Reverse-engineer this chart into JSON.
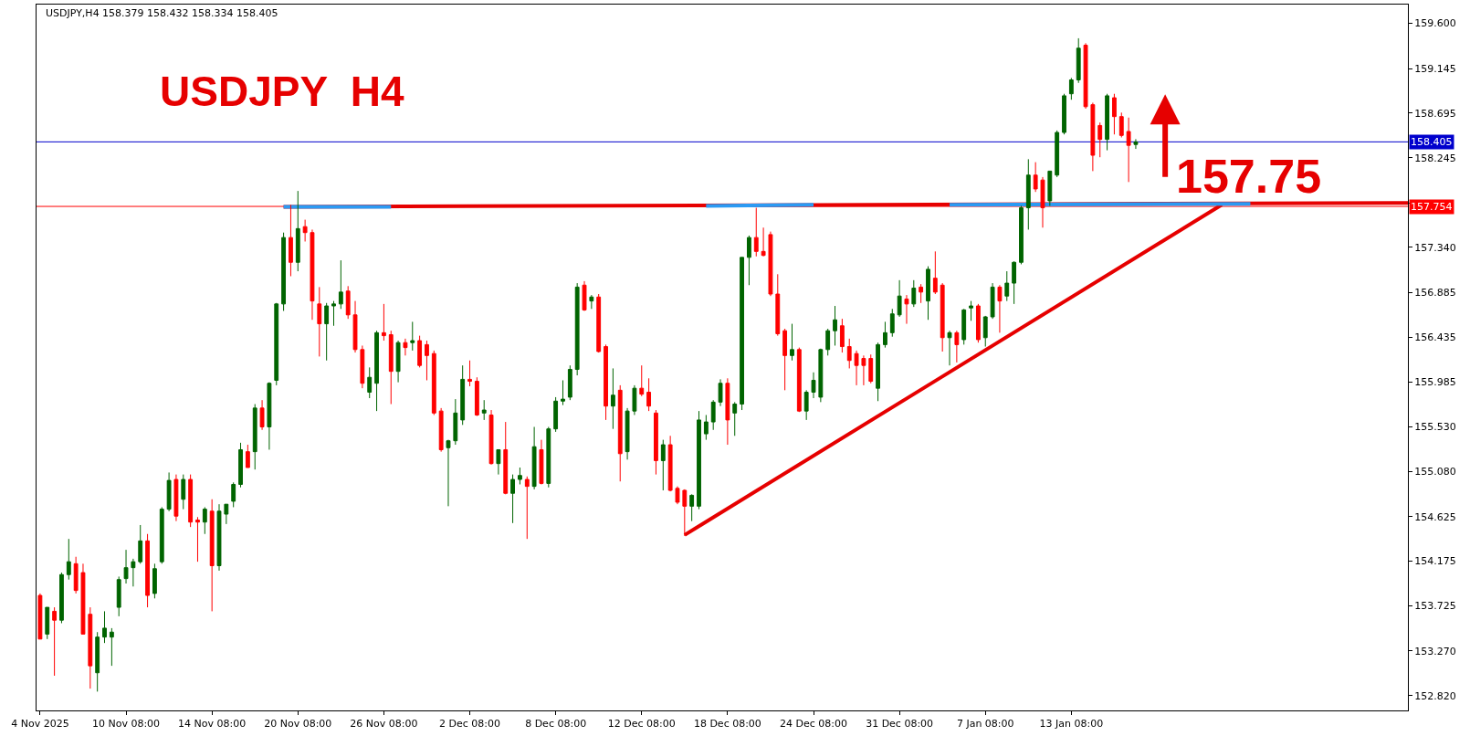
{
  "chart_data": {
    "type": "candlestick",
    "title": "USDJPY  H4",
    "subtitle": "USDJPY,H4 158.379 158.432 158.334 158.405",
    "annotations": [
      "157.75"
    ],
    "categories": [
      "4 Nov 2025",
      null,
      null,
      null,
      null,
      null,
      null,
      null,
      null,
      null,
      null,
      null,
      "10 Nov 08:00",
      null,
      null,
      null,
      null,
      null,
      null,
      null,
      null,
      null,
      null,
      null,
      "14 Nov 08:00",
      null,
      null,
      null,
      null,
      null,
      null,
      null,
      null,
      null,
      null,
      null,
      "20 Nov 08:00",
      null,
      null,
      null,
      null,
      null,
      null,
      null,
      null,
      null,
      null,
      null,
      "26 Nov 08:00",
      null,
      null,
      null,
      null,
      null,
      null,
      null,
      null,
      null,
      null,
      null,
      "2 Dec 08:00",
      null,
      null,
      null,
      null,
      null,
      null,
      null,
      null,
      null,
      null,
      null,
      "8 Dec 08:00",
      null,
      null,
      null,
      null,
      null,
      null,
      null,
      null,
      null,
      null,
      null,
      "12 Dec 08:00",
      null,
      null,
      null,
      null,
      null,
      null,
      null,
      null,
      null,
      null,
      null,
      "18 Dec 08:00",
      null,
      null,
      null,
      null,
      null,
      null,
      null,
      null,
      null,
      null,
      null,
      "24 Dec 08:00",
      null,
      null,
      null,
      null,
      null,
      null,
      null,
      null,
      null,
      null,
      null,
      "31 Dec 08:00",
      null,
      null,
      null,
      null,
      null,
      null,
      null,
      null,
      null,
      null,
      null,
      "7 Jan 08:00",
      null,
      null,
      null,
      null,
      null,
      null,
      null,
      null,
      null,
      null,
      null,
      "13 Jan 08:00",
      null,
      null,
      null,
      null,
      null,
      null,
      null,
      null,
      null,
      null,
      null,
      null,
      null,
      null,
      null,
      null,
      null,
      null,
      null,
      null,
      null,
      null,
      null,
      null,
      null,
      null,
      null,
      null,
      null,
      null,
      null,
      null,
      null,
      null,
      null,
      null,
      null,
      null,
      null,
      null,
      null,
      null,
      null,
      null,
      null,
      null,
      null
    ],
    "ohlc": [
      [
        153.83,
        153.85,
        153.39,
        153.39
      ],
      [
        153.44,
        153.71,
        153.39,
        153.71
      ],
      [
        153.67,
        153.71,
        153.02,
        153.58
      ],
      [
        153.58,
        154.06,
        153.55,
        154.04
      ],
      [
        154.04,
        154.4,
        153.99,
        154.17
      ],
      [
        154.15,
        154.22,
        153.85,
        153.88
      ],
      [
        154.06,
        154.15,
        153.44,
        153.44
      ],
      [
        153.64,
        153.71,
        152.89,
        153.12
      ],
      [
        153.05,
        153.46,
        152.86,
        153.41
      ],
      [
        153.41,
        153.67,
        153.35,
        153.5
      ],
      [
        153.41,
        153.5,
        153.12,
        153.46
      ],
      [
        153.71,
        154.02,
        153.62,
        153.99
      ],
      [
        154.0,
        154.29,
        153.95,
        154.11
      ],
      [
        154.11,
        154.2,
        153.92,
        154.17
      ],
      [
        154.17,
        154.54,
        154.15,
        154.38
      ],
      [
        154.38,
        154.45,
        153.71,
        153.83
      ],
      [
        153.85,
        154.15,
        153.8,
        154.1
      ],
      [
        154.17,
        154.72,
        154.15,
        154.7
      ],
      [
        154.7,
        155.07,
        154.68,
        154.99
      ],
      [
        155.0,
        155.05,
        154.58,
        154.63
      ],
      [
        154.8,
        155.05,
        154.7,
        155.0
      ],
      [
        155.0,
        155.05,
        154.52,
        154.57
      ],
      [
        154.59,
        154.62,
        154.17,
        154.57
      ],
      [
        154.57,
        154.72,
        154.45,
        154.7
      ],
      [
        154.68,
        154.8,
        153.67,
        154.13
      ],
      [
        154.13,
        154.75,
        154.08,
        154.68
      ],
      [
        154.65,
        154.75,
        154.55,
        154.75
      ],
      [
        154.78,
        154.97,
        154.72,
        154.95
      ],
      [
        154.95,
        155.37,
        154.92,
        155.3
      ],
      [
        155.28,
        155.35,
        155.12,
        155.12
      ],
      [
        155.28,
        155.76,
        155.1,
        155.72
      ],
      [
        155.72,
        155.8,
        155.5,
        155.53
      ],
      [
        155.53,
        155.98,
        155.3,
        155.97
      ],
      [
        156.0,
        156.78,
        155.95,
        156.77
      ],
      [
        156.77,
        157.49,
        156.7,
        157.44
      ],
      [
        157.44,
        157.77,
        157.05,
        157.19
      ],
      [
        157.19,
        157.91,
        157.1,
        157.53
      ],
      [
        157.55,
        157.62,
        157.4,
        157.49
      ],
      [
        157.49,
        157.52,
        156.61,
        156.8
      ],
      [
        156.77,
        156.94,
        156.24,
        156.57
      ],
      [
        156.57,
        156.78,
        156.2,
        156.75
      ],
      [
        156.75,
        156.8,
        156.55,
        156.77
      ],
      [
        156.77,
        157.21,
        156.72,
        156.89
      ],
      [
        156.9,
        156.95,
        156.62,
        156.66
      ],
      [
        156.66,
        156.8,
        156.28,
        156.31
      ],
      [
        156.31,
        156.35,
        155.92,
        155.97
      ],
      [
        155.88,
        156.13,
        155.82,
        156.03
      ],
      [
        155.97,
        156.5,
        155.69,
        156.48
      ],
      [
        156.48,
        156.77,
        156.4,
        156.45
      ],
      [
        156.46,
        156.5,
        155.76,
        156.09
      ],
      [
        156.09,
        156.4,
        155.98,
        156.38
      ],
      [
        156.38,
        156.42,
        156.25,
        156.33
      ],
      [
        156.38,
        156.59,
        156.3,
        156.4
      ],
      [
        156.4,
        156.45,
        156.13,
        156.15
      ],
      [
        156.36,
        156.4,
        156.0,
        156.25
      ],
      [
        156.27,
        156.3,
        155.65,
        155.67
      ],
      [
        155.69,
        155.72,
        155.28,
        155.3
      ],
      [
        155.32,
        155.4,
        154.73,
        155.39
      ],
      [
        155.39,
        155.81,
        155.35,
        155.67
      ],
      [
        155.6,
        156.15,
        155.55,
        156.01
      ],
      [
        156.01,
        156.2,
        155.94,
        155.99
      ],
      [
        155.99,
        156.03,
        155.64,
        155.65
      ],
      [
        155.67,
        155.8,
        155.6,
        155.7
      ],
      [
        155.65,
        155.7,
        155.15,
        155.16
      ],
      [
        155.16,
        155.3,
        155.05,
        155.3
      ],
      [
        155.3,
        155.58,
        154.85,
        154.86
      ],
      [
        154.86,
        155.05,
        154.56,
        155.0
      ],
      [
        155.0,
        155.12,
        154.95,
        155.04
      ],
      [
        155.0,
        155.03,
        154.4,
        154.93
      ],
      [
        154.93,
        155.53,
        154.9,
        155.33
      ],
      [
        155.3,
        155.4,
        154.95,
        154.96
      ],
      [
        154.96,
        155.53,
        154.92,
        155.51
      ],
      [
        155.51,
        155.83,
        155.48,
        155.79
      ],
      [
        155.79,
        156.0,
        155.75,
        155.81
      ],
      [
        155.83,
        156.15,
        155.8,
        156.11
      ],
      [
        156.11,
        156.98,
        156.05,
        156.94
      ],
      [
        156.96,
        157.0,
        156.7,
        156.71
      ],
      [
        156.8,
        156.86,
        156.72,
        156.84
      ],
      [
        156.84,
        156.87,
        156.28,
        156.29
      ],
      [
        156.34,
        156.36,
        155.6,
        155.74
      ],
      [
        155.74,
        156.12,
        155.51,
        155.85
      ],
      [
        155.9,
        155.95,
        154.98,
        155.26
      ],
      [
        155.28,
        155.72,
        155.2,
        155.69
      ],
      [
        155.69,
        155.95,
        155.65,
        155.92
      ],
      [
        155.92,
        156.15,
        155.84,
        155.86
      ],
      [
        155.88,
        156.02,
        155.69,
        155.74
      ],
      [
        155.67,
        155.7,
        155.05,
        155.19
      ],
      [
        155.19,
        155.4,
        154.89,
        155.35
      ],
      [
        155.35,
        155.44,
        154.88,
        154.89
      ],
      [
        154.91,
        154.93,
        154.75,
        154.77
      ],
      [
        154.89,
        154.9,
        154.43,
        154.73
      ],
      [
        154.73,
        154.85,
        154.58,
        154.84
      ],
      [
        154.73,
        155.69,
        154.7,
        155.6
      ],
      [
        155.46,
        155.65,
        155.4,
        155.58
      ],
      [
        155.58,
        155.8,
        155.5,
        155.78
      ],
      [
        155.78,
        156.01,
        155.74,
        155.97
      ],
      [
        155.97,
        156.02,
        155.35,
        155.6
      ],
      [
        155.67,
        155.78,
        155.44,
        155.76
      ],
      [
        155.76,
        157.24,
        155.7,
        157.24
      ],
      [
        157.24,
        157.46,
        156.96,
        157.44
      ],
      [
        157.44,
        157.74,
        157.25,
        157.3
      ],
      [
        157.3,
        157.54,
        157.25,
        157.26
      ],
      [
        157.47,
        157.5,
        156.85,
        156.87
      ],
      [
        156.87,
        157.07,
        156.45,
        156.47
      ],
      [
        156.5,
        156.52,
        155.9,
        156.25
      ],
      [
        156.25,
        156.57,
        156.2,
        156.31
      ],
      [
        156.31,
        156.33,
        155.68,
        155.69
      ],
      [
        155.69,
        155.9,
        155.6,
        155.88
      ],
      [
        155.88,
        156.08,
        155.82,
        156.0
      ],
      [
        155.83,
        156.32,
        155.78,
        156.31
      ],
      [
        156.31,
        156.52,
        156.25,
        156.5
      ],
      [
        156.5,
        156.75,
        156.35,
        156.61
      ],
      [
        156.55,
        156.62,
        156.28,
        156.34
      ],
      [
        156.34,
        156.42,
        156.12,
        156.2
      ],
      [
        156.27,
        156.3,
        155.95,
        156.15
      ],
      [
        156.22,
        156.25,
        155.95,
        156.15
      ],
      [
        156.22,
        156.26,
        155.97,
        155.99
      ],
      [
        155.92,
        156.38,
        155.79,
        156.36
      ],
      [
        156.36,
        156.59,
        156.33,
        156.48
      ],
      [
        156.48,
        156.72,
        156.44,
        156.67
      ],
      [
        156.66,
        157.01,
        156.64,
        156.85
      ],
      [
        156.82,
        156.86,
        156.57,
        156.77
      ],
      [
        156.77,
        157.01,
        156.74,
        156.93
      ],
      [
        156.94,
        156.97,
        156.78,
        156.89
      ],
      [
        156.8,
        157.15,
        156.61,
        157.12
      ],
      [
        157.03,
        157.3,
        156.87,
        156.89
      ],
      [
        156.96,
        156.98,
        156.29,
        156.43
      ],
      [
        156.43,
        156.5,
        156.15,
        156.48
      ],
      [
        156.48,
        156.5,
        156.18,
        156.36
      ],
      [
        156.41,
        156.72,
        156.36,
        156.71
      ],
      [
        156.73,
        156.8,
        156.6,
        156.75
      ],
      [
        156.75,
        156.77,
        156.38,
        156.41
      ],
      [
        156.43,
        156.65,
        156.34,
        156.64
      ],
      [
        156.64,
        156.98,
        156.62,
        156.94
      ],
      [
        156.94,
        156.96,
        156.48,
        156.8
      ],
      [
        156.85,
        157.1,
        156.8,
        156.98
      ],
      [
        156.98,
        157.2,
        156.77,
        157.19
      ],
      [
        157.19,
        157.76,
        157.17,
        157.74
      ],
      [
        157.74,
        158.23,
        157.52,
        158.07
      ],
      [
        158.07,
        158.2,
        157.9,
        157.93
      ],
      [
        158.02,
        158.05,
        157.54,
        157.74
      ],
      [
        157.81,
        158.11,
        157.76,
        158.11
      ],
      [
        158.07,
        158.52,
        158.05,
        158.5
      ],
      [
        158.5,
        158.89,
        158.48,
        158.87
      ],
      [
        158.89,
        159.05,
        158.83,
        159.03
      ],
      [
        159.03,
        159.45,
        159.0,
        159.35
      ],
      [
        159.38,
        159.4,
        158.74,
        158.76
      ],
      [
        158.78,
        158.8,
        158.11,
        158.27
      ],
      [
        158.57,
        158.6,
        158.25,
        158.43
      ],
      [
        158.43,
        158.89,
        158.32,
        158.87
      ],
      [
        158.85,
        158.89,
        158.48,
        158.66
      ],
      [
        158.66,
        158.7,
        158.45,
        158.47
      ],
      [
        158.51,
        158.65,
        158.0,
        158.37
      ],
      [
        158.379,
        158.432,
        158.334,
        158.405
      ],
      null,
      null,
      null,
      null,
      null,
      null,
      null,
      null,
      null,
      null,
      null,
      null,
      null,
      null,
      null,
      null,
      null,
      null,
      null,
      null,
      null,
      null,
      null,
      null,
      null,
      null,
      null,
      null,
      null,
      null,
      null,
      null,
      null,
      null,
      null,
      null,
      null,
      null
    ],
    "colors": [
      "#ff0000",
      "#006400",
      "#ff0000",
      "#006400",
      "#006400",
      "#ff0000",
      "#ff0000",
      "#ff0000",
      "#006400",
      "#006400",
      "#006400",
      "#006400",
      "#006400",
      "#006400",
      "#006400",
      "#ff0000",
      "#006400",
      "#006400",
      "#006400",
      "#ff0000",
      "#006400",
      "#ff0000",
      "#ff0000",
      "#006400",
      "#ff0000",
      "#006400",
      "#006400",
      "#006400",
      "#006400",
      "#ff0000",
      "#006400",
      "#ff0000",
      "#006400",
      "#006400",
      "#006400",
      "#ff0000",
      "#006400",
      "#ff0000",
      "#ff0000",
      "#ff0000",
      "#006400",
      "#006400",
      "#006400",
      "#ff0000",
      "#ff0000",
      "#ff0000",
      "#006400",
      "#006400",
      "#ff0000",
      "#ff0000",
      "#006400",
      "#ff0000",
      "#006400",
      "#ff0000",
      "#ff0000",
      "#ff0000",
      "#ff0000",
      "#006400",
      "#006400",
      "#006400",
      "#ff0000",
      "#ff0000",
      "#006400",
      "#ff0000",
      "#006400",
      "#ff0000",
      "#006400",
      "#006400",
      "#ff0000",
      "#006400",
      "#ff0000",
      "#006400",
      "#006400",
      "#006400",
      "#006400",
      "#006400",
      "#ff0000",
      "#006400",
      "#ff0000",
      "#ff0000",
      "#006400",
      "#ff0000",
      "#006400",
      "#006400",
      "#ff0000",
      "#ff0000",
      "#ff0000",
      "#006400",
      "#ff0000",
      "#ff0000",
      "#ff0000",
      "#006400",
      "#006400",
      "#006400",
      "#006400",
      "#006400",
      "#ff0000",
      "#006400",
      "#006400",
      "#006400",
      "#ff0000",
      "#ff0000",
      "#ff0000",
      "#ff0000",
      "#ff0000",
      "#006400",
      "#ff0000",
      "#006400",
      "#006400",
      "#006400",
      "#006400",
      "#006400",
      "#ff0000",
      "#ff0000",
      "#ff0000",
      "#ff0000",
      "#ff0000",
      "#006400",
      "#006400",
      "#006400",
      "#006400",
      "#ff0000",
      "#006400",
      "#ff0000",
      "#006400",
      "#ff0000",
      "#ff0000",
      "#006400",
      "#ff0000",
      "#006400",
      "#006400",
      "#ff0000",
      "#006400",
      "#006400",
      "#ff0000",
      "#006400",
      "#006400",
      "#006400",
      "#006400",
      "#ff0000",
      "#ff0000",
      "#006400",
      "#006400",
      "#006400",
      "#006400",
      "#006400",
      "#ff0000",
      "#ff0000",
      "#ff0000",
      "#006400",
      "#ff0000",
      "#ff0000",
      "#ff0000",
      "#006400",
      null,
      null,
      null,
      null,
      null,
      null,
      null,
      null,
      null,
      null,
      null,
      null,
      null,
      null,
      null,
      null,
      null,
      null,
      null,
      null,
      null,
      null,
      null,
      null,
      null,
      null,
      null,
      null,
      null,
      null,
      null,
      null,
      null,
      null,
      null,
      null,
      null,
      null
    ],
    "series": [
      {
        "type": "line",
        "color": "#e60000",
        "values": [
          null,
          null,
          null,
          null,
          null,
          null,
          null,
          null,
          null,
          null,
          null,
          null,
          null,
          null,
          null,
          null,
          null,
          null,
          null,
          null,
          null,
          null,
          null,
          null,
          null,
          null,
          null,
          null,
          null,
          null,
          null,
          null,
          null,
          null,
          157.75,
          null,
          null,
          null,
          null,
          null,
          null,
          null,
          null,
          null,
          null,
          null,
          null,
          null,
          null,
          null,
          null,
          null,
          null,
          null,
          null,
          null,
          null,
          null,
          null,
          null,
          null,
          null,
          null,
          null,
          null,
          null,
          null,
          null,
          null,
          null,
          null,
          null,
          null,
          null,
          null,
          null,
          null,
          null,
          null,
          null,
          null,
          null,
          null,
          null,
          null,
          null,
          null,
          null,
          null,
          null,
          null,
          null,
          null,
          null,
          null,
          null,
          null,
          null,
          null,
          null,
          null,
          null,
          null,
          null,
          null,
          null,
          null,
          null,
          null,
          null,
          null,
          null,
          null,
          null,
          null,
          null,
          null,
          null,
          null,
          null,
          null,
          null,
          null,
          null,
          null,
          null,
          null,
          null,
          null,
          null,
          null,
          null,
          null,
          null,
          null,
          null,
          null,
          null,
          null,
          null,
          null,
          null,
          null,
          null,
          null,
          null,
          null,
          null,
          null,
          null,
          null,
          null,
          null,
          null,
          null,
          null,
          null,
          null,
          null,
          null,
          null,
          null,
          null,
          null,
          null,
          null,
          null,
          null,
          null,
          null,
          null,
          null,
          null,
          null,
          null,
          null,
          null,
          null,
          null,
          null,
          null,
          null,
          null,
          null,
          null,
          null,
          null,
          null,
          null,
          null,
          null,
          157.79
        ]
      },
      {
        "type": "line",
        "color": "#e60000",
        "values": [
          null,
          null,
          null,
          null,
          null,
          null,
          null,
          null,
          null,
          null,
          null,
          null,
          null,
          null,
          null,
          null,
          null,
          null,
          null,
          null,
          null,
          null,
          null,
          null,
          null,
          null,
          null,
          null,
          null,
          null,
          null,
          null,
          null,
          null,
          null,
          null,
          null,
          null,
          null,
          null,
          null,
          null,
          null,
          null,
          null,
          null,
          null,
          null,
          null,
          null,
          null,
          null,
          null,
          null,
          null,
          null,
          null,
          null,
          null,
          null,
          null,
          null,
          null,
          null,
          null,
          null,
          null,
          null,
          null,
          null,
          null,
          null,
          null,
          null,
          null,
          null,
          null,
          null,
          null,
          null,
          null,
          null,
          null,
          null,
          null,
          null,
          null,
          null,
          null,
          null,
          154.44,
          null,
          null,
          null,
          null,
          null,
          null,
          null,
          null,
          null,
          null,
          null,
          null,
          null,
          null,
          null,
          null,
          null,
          null,
          null,
          null,
          null,
          null,
          null,
          null,
          null,
          null,
          null,
          null,
          null,
          null,
          null,
          null,
          null,
          null,
          null,
          null,
          null,
          null,
          null,
          null,
          null,
          null,
          null,
          null,
          null,
          null,
          null,
          null,
          null,
          null,
          null,
          null,
          null,
          null,
          null,
          null,
          null,
          null,
          null,
          null,
          null,
          null,
          null,
          null,
          null,
          null,
          null,
          null,
          null,
          null,
          null,
          null,
          null,
          null,
          157.77,
          null,
          null,
          null,
          null,
          null,
          null,
          null,
          null,
          null,
          null,
          null,
          null,
          null,
          null,
          null,
          null,
          null,
          null,
          null,
          null,
          null,
          null,
          null,
          null,
          null,
          null
        ]
      },
      {
        "type": "line",
        "color": "#2b9af3",
        "values": [
          null,
          null,
          null,
          null,
          null,
          null,
          null,
          null,
          null,
          null,
          null,
          null,
          null,
          null,
          null,
          null,
          null,
          null,
          null,
          null,
          null,
          null,
          null,
          null,
          null,
          null,
          null,
          null,
          null,
          null,
          null,
          null,
          null,
          null,
          157.75,
          null,
          null,
          null,
          null,
          null,
          null,
          null,
          null,
          null,
          null,
          null,
          null,
          null,
          null,
          157.75,
          null,
          null,
          null,
          null,
          null,
          null,
          null,
          null,
          null,
          null,
          null,
          null,
          null,
          null,
          null,
          null,
          null,
          null,
          null,
          null,
          null,
          null,
          null,
          null,
          null,
          null,
          null,
          null,
          null,
          null,
          null,
          null,
          null,
          null,
          null,
          null,
          null,
          null,
          null,
          null,
          null,
          null,
          null,
          null,
          null,
          null,
          null,
          null,
          null,
          null,
          null,
          null,
          null,
          null,
          null,
          null,
          null,
          null,
          null,
          null,
          null,
          null,
          null,
          null,
          null,
          null,
          null,
          null,
          null,
          null,
          null,
          null,
          null,
          null,
          null,
          null,
          null,
          null,
          null,
          null,
          null,
          null,
          null,
          null,
          null,
          null,
          null,
          null,
          null,
          null,
          null,
          null,
          null,
          null,
          null,
          null,
          null,
          null,
          null,
          null,
          null,
          null,
          null,
          null,
          null,
          null,
          null,
          null,
          null,
          null,
          null,
          null,
          null,
          null,
          null,
          null,
          null,
          null,
          null,
          null,
          null,
          null,
          null,
          null,
          null,
          null,
          null,
          null,
          null,
          null,
          null,
          null,
          null,
          null,
          null,
          null,
          null,
          null,
          null,
          null,
          null,
          null
        ]
      },
      {
        "type": "line",
        "color": "#2b9af3",
        "values": [
          null,
          null,
          null,
          null,
          null,
          null,
          null,
          null,
          null,
          null,
          null,
          null,
          null,
          null,
          null,
          null,
          null,
          null,
          null,
          null,
          null,
          null,
          null,
          null,
          null,
          null,
          null,
          null,
          null,
          null,
          null,
          null,
          null,
          null,
          null,
          null,
          null,
          null,
          null,
          null,
          null,
          null,
          null,
          null,
          null,
          null,
          null,
          null,
          null,
          null,
          null,
          null,
          null,
          null,
          null,
          null,
          null,
          null,
          null,
          null,
          null,
          null,
          null,
          null,
          null,
          null,
          null,
          null,
          null,
          null,
          null,
          null,
          null,
          null,
          null,
          null,
          null,
          null,
          null,
          null,
          null,
          null,
          null,
          null,
          null,
          null,
          null,
          null,
          null,
          null,
          null,
          null,
          null,
          157.76,
          null,
          null,
          null,
          null,
          null,
          null,
          null,
          null,
          null,
          null,
          null,
          null,
          null,
          null,
          157.77,
          null,
          null,
          null,
          null,
          null,
          null,
          null,
          null,
          null,
          null,
          null,
          null,
          null,
          null,
          null,
          null,
          null,
          null,
          null,
          null,
          null,
          null,
          null,
          null,
          null,
          null,
          null,
          null,
          null,
          null,
          null,
          null,
          null,
          null,
          null,
          null,
          null,
          null,
          null,
          null,
          null,
          null,
          null,
          null,
          null,
          null,
          null,
          null,
          null,
          null,
          null,
          null,
          null,
          null,
          null,
          null,
          null,
          null,
          null,
          null,
          null,
          null,
          null,
          null,
          null,
          null,
          null,
          null,
          null,
          null,
          null,
          null,
          null,
          null,
          null,
          null,
          null,
          null,
          null,
          null,
          null,
          null,
          null
        ]
      },
      {
        "type": "line",
        "color": "#2b9af3",
        "values": [
          null,
          null,
          null,
          null,
          null,
          null,
          null,
          null,
          null,
          null,
          null,
          null,
          null,
          null,
          null,
          null,
          null,
          null,
          null,
          null,
          null,
          null,
          null,
          null,
          null,
          null,
          null,
          null,
          null,
          null,
          null,
          null,
          null,
          null,
          null,
          null,
          null,
          null,
          null,
          null,
          null,
          null,
          null,
          null,
          null,
          null,
          null,
          null,
          null,
          null,
          null,
          null,
          null,
          null,
          null,
          null,
          null,
          null,
          null,
          null,
          null,
          null,
          null,
          null,
          null,
          null,
          null,
          null,
          null,
          null,
          null,
          null,
          null,
          null,
          null,
          null,
          null,
          null,
          null,
          null,
          null,
          null,
          null,
          null,
          null,
          null,
          null,
          null,
          null,
          null,
          null,
          null,
          null,
          null,
          null,
          null,
          null,
          null,
          null,
          null,
          null,
          null,
          null,
          null,
          null,
          null,
          null,
          null,
          null,
          null,
          null,
          null,
          null,
          null,
          null,
          null,
          null,
          null,
          null,
          null,
          null,
          null,
          null,
          null,
          null,
          null,
          null,
          157.77,
          null,
          null,
          null,
          null,
          null,
          null,
          null,
          null,
          null,
          null,
          null,
          null,
          null,
          null,
          null,
          null,
          null,
          null,
          null,
          null,
          null,
          null,
          null,
          null,
          null,
          null,
          null,
          null,
          null,
          null,
          null,
          null,
          null,
          null,
          null,
          null,
          null,
          null,
          null,
          null,
          null,
          157.78,
          null,
          null,
          null,
          null,
          null,
          null,
          null,
          null,
          null,
          null,
          null,
          null,
          null,
          null,
          null,
          null,
          null,
          null,
          null,
          null,
          null,
          null
        ]
      }
    ],
    "ylim": [
      152.67,
      159.79
    ],
    "yticks": [
      {
        "value": 152.82,
        "label": "152.820"
      },
      {
        "value": 153.27,
        "label": "153.270"
      },
      153.725,
      154.175,
      154.625,
      {
        "value": 155.08,
        "label": "155.080"
      },
      {
        "value": 155.53,
        "label": "155.530"
      },
      155.985,
      156.435,
      156.885,
      {
        "value": 157.34,
        "label": "157.340"
      },
      {
        "value": 157.79,
        "label": null
      },
      158.245,
      158.695,
      159.145,
      {
        "value": 159.6,
        "label": "159.600"
      }
    ],
    "ref_lines": [
      {
        "axis": "y",
        "value": 158.405,
        "label": "158.405",
        "color": "#0000cd"
      },
      {
        "axis": "y",
        "value": 157.754,
        "label": "157.754",
        "color": "#ff0000"
      }
    ]
  }
}
